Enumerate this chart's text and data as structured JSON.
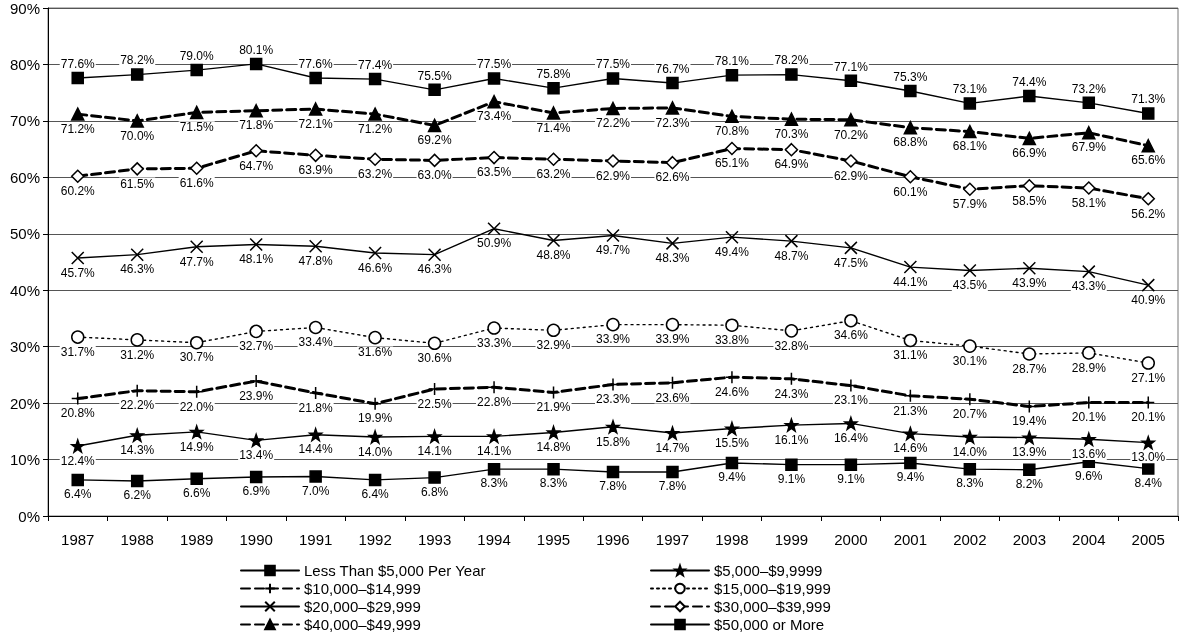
{
  "chart_data": {
    "type": "line",
    "categories": [
      "1987",
      "1988",
      "1989",
      "1990",
      "1991",
      "1992",
      "1993",
      "1994",
      "1995",
      "1996",
      "1997",
      "1998",
      "1999",
      "2000",
      "2001",
      "2002",
      "2003",
      "2004",
      "2005"
    ],
    "ylim": [
      0,
      90
    ],
    "yticks": [
      {
        "value": 0,
        "label": "0%"
      },
      {
        "value": 10,
        "label": "10%"
      },
      {
        "value": 20,
        "label": "20%"
      },
      {
        "value": 30,
        "label": "30%"
      },
      {
        "value": 40,
        "label": "40%"
      },
      {
        "value": 50,
        "label": "50%"
      },
      {
        "value": 60,
        "label": "60%"
      },
      {
        "value": 70,
        "label": "70%"
      },
      {
        "value": 80,
        "label": "80%"
      },
      {
        "value": 90,
        "label": "90%"
      }
    ],
    "grid": "y",
    "legend": "bottom",
    "series": [
      {
        "name": "Less Than $5,000 Per Year",
        "color": "#000000",
        "marker": "square",
        "line_style": "solid",
        "values": [
          6.4,
          6.2,
          6.6,
          6.9,
          7.0,
          6.4,
          6.8,
          8.3,
          8.3,
          7.8,
          7.8,
          9.4,
          9.1,
          9.1,
          9.4,
          8.3,
          8.2,
          9.6,
          8.4
        ],
        "value_labels": [
          "6.4%",
          "6.2%",
          "6.6%",
          "6.9%",
          "7.0%",
          "6.4%",
          "6.8%",
          "8.3%",
          "8.3%",
          "7.8%",
          "7.8%",
          "9.4%",
          "9.1%",
          "9.1%",
          "9.4%",
          "8.3%",
          "8.2%",
          "9.6%",
          "8.4%"
        ]
      },
      {
        "name": "$5,000–$9,9999",
        "color": "#000000",
        "marker": "star",
        "line_style": "solid",
        "values": [
          12.4,
          14.3,
          14.9,
          13.4,
          14.4,
          14.0,
          14.1,
          14.1,
          14.8,
          15.8,
          14.7,
          15.5,
          16.1,
          16.4,
          14.6,
          14.0,
          13.9,
          13.6,
          13.0
        ],
        "value_labels": [
          "12.4%",
          "14.3%",
          "14.9%",
          "13.4%",
          "14.4%",
          "14.0%",
          "14.1%",
          "14.1%",
          "14.8%",
          "15.8%",
          "14.7%",
          "15.5%",
          "16.1%",
          "16.4%",
          "14.6%",
          "14.0%",
          "13.9%",
          "13.6%",
          "13.0%"
        ]
      },
      {
        "name": "$10,000–$14,999",
        "color": "#000000",
        "marker": "cross",
        "line_style": "dashed",
        "values": [
          20.8,
          22.2,
          22.0,
          23.9,
          21.8,
          19.9,
          22.5,
          22.8,
          21.9,
          23.3,
          23.6,
          24.6,
          24.3,
          23.1,
          21.3,
          20.7,
          19.4,
          20.1,
          20.1
        ],
        "value_labels": [
          "20.8%",
          "22.2%",
          "22.0%",
          "23.9%",
          "21.8%",
          "19.9%",
          "22.5%",
          "22.8%",
          "21.9%",
          "23.3%",
          "23.6%",
          "24.6%",
          "24.3%",
          "23.1%",
          "21.3%",
          "20.7%",
          "19.4%",
          "20.1%",
          "20.1%"
        ]
      },
      {
        "name": "$15,000–$19,999",
        "color": "#000000",
        "marker": "circle",
        "line_style": "dotted",
        "values": [
          31.7,
          31.2,
          30.7,
          32.7,
          33.4,
          31.6,
          30.6,
          33.3,
          32.9,
          33.9,
          33.9,
          33.8,
          32.8,
          34.6,
          31.1,
          30.1,
          28.7,
          28.9,
          27.1
        ],
        "value_labels": [
          "31.7%",
          "31.2%",
          "30.7%",
          "32.7%",
          "33.4%",
          "31.6%",
          "30.6%",
          "33.3%",
          "32.9%",
          "33.9%",
          "33.9%",
          "33.8%",
          "32.8%",
          "34.6%",
          "31.1%",
          "30.1%",
          "28.7%",
          "28.9%",
          "27.1%"
        ]
      },
      {
        "name": "$20,000–$29,999",
        "color": "#000000",
        "marker": "x",
        "line_style": "solid",
        "values": [
          45.7,
          46.3,
          47.7,
          48.1,
          47.8,
          46.6,
          46.3,
          50.9,
          48.8,
          49.7,
          48.3,
          49.4,
          48.7,
          47.5,
          44.1,
          43.5,
          43.9,
          43.3,
          40.9
        ],
        "value_labels": [
          "45.7%",
          "46.3%",
          "47.7%",
          "48.1%",
          "47.8%",
          "46.6%",
          "46.3%",
          "50.9%",
          "48.8%",
          "49.7%",
          "48.3%",
          "49.4%",
          "48.7%",
          "47.5%",
          "44.1%",
          "43.5%",
          "43.9%",
          "43.3%",
          "40.9%"
        ]
      },
      {
        "name": "$30,000–$39,999",
        "color": "#000000",
        "marker": "diamond",
        "line_style": "dashed",
        "values": [
          60.2,
          61.5,
          61.6,
          64.7,
          63.9,
          63.2,
          63.0,
          63.5,
          63.2,
          62.9,
          62.6,
          65.1,
          64.9,
          62.9,
          60.1,
          57.9,
          58.5,
          58.1,
          56.2
        ],
        "value_labels": [
          "60.2%",
          "61.5%",
          "61.6%",
          "64.7%",
          "63.9%",
          "63.2%",
          "63.0%",
          "63.5%",
          "63.2%",
          "62.9%",
          "62.6%",
          "65.1%",
          "64.9%",
          "62.9%",
          "60.1%",
          "57.9%",
          "58.5%",
          "58.1%",
          "56.2%"
        ]
      },
      {
        "name": "$40,000–$49,999",
        "color": "#000000",
        "marker": "triangle",
        "line_style": "dashed",
        "values": [
          71.2,
          70.0,
          71.5,
          71.8,
          72.1,
          71.2,
          69.2,
          73.4,
          71.4,
          72.2,
          72.3,
          70.8,
          70.3,
          70.2,
          68.8,
          68.1,
          66.9,
          67.9,
          65.6
        ],
        "value_labels": [
          "71.2%",
          "70.0%",
          "71.5%",
          "71.8%",
          "72.1%",
          "71.2%",
          "69.2%",
          "73.4%",
          "71.4%",
          "72.2%",
          "72.3%",
          "70.8%",
          "70.3%",
          "70.2%",
          "68.8%",
          "68.1%",
          "66.9%",
          "67.9%",
          "65.6%"
        ]
      },
      {
        "name": "$50,000 or More",
        "color": "#000000",
        "marker": "square",
        "line_style": "solid",
        "values": [
          77.6,
          78.2,
          79.0,
          80.1,
          77.6,
          77.4,
          75.5,
          77.5,
          75.8,
          77.5,
          76.7,
          78.1,
          78.2,
          77.1,
          75.3,
          73.1,
          74.4,
          73.2,
          71.3
        ],
        "value_labels": [
          "77.6%",
          "78.2%",
          "79.0%",
          "80.1%",
          "77.6%",
          "77.4%",
          "75.5%",
          "77.5%",
          "75.8%",
          "77.5%",
          "76.7%",
          "78.1%",
          "78.2%",
          "77.1%",
          "75.3%",
          "73.1%",
          "74.4%",
          "73.2%",
          "71.3%"
        ]
      }
    ]
  }
}
